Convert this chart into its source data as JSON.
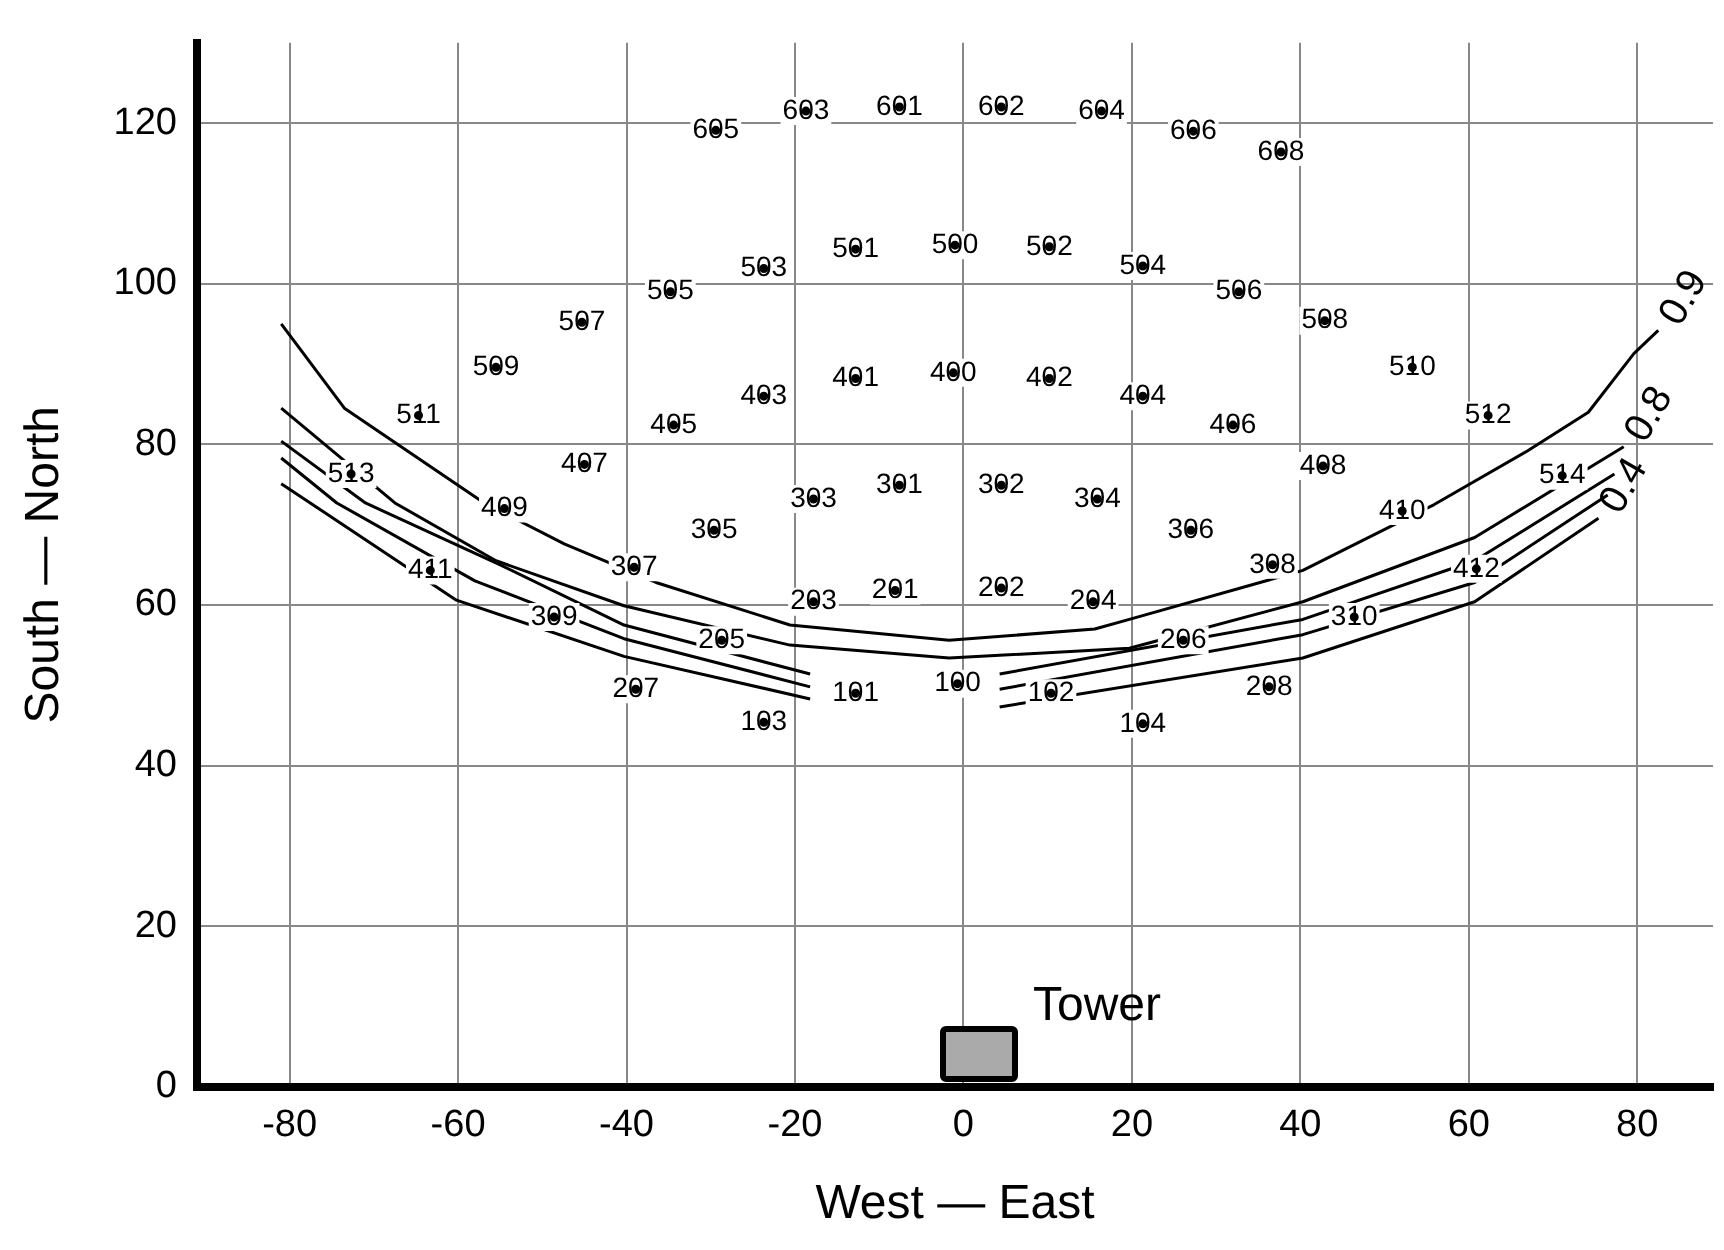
{
  "chart_data": {
    "type": "scatter",
    "xlabel": "West — East",
    "ylabel": "South — North",
    "xlim": [
      -91,
      89
    ],
    "ylim": [
      0,
      130
    ],
    "xticks": [
      -80,
      -60,
      -40,
      -20,
      0,
      20,
      40,
      60,
      80
    ],
    "yticks": [
      0,
      20,
      40,
      60,
      80,
      100,
      120
    ],
    "grid": true,
    "legend": false,
    "marker": "none",
    "line_style": "solid",
    "annotations": [
      "Tower",
      {
        "text": "605",
        "x": -29.4,
        "y": 119.1
      },
      {
        "text": "603",
        "x": -18.7,
        "y": 121.5
      },
      {
        "text": "601",
        "x": -7.6,
        "y": 122
      },
      {
        "text": "602",
        "x": 4.5,
        "y": 122
      },
      {
        "text": "604",
        "x": 16.4,
        "y": 121.5
      },
      {
        "text": "606",
        "x": 27.3,
        "y": 119
      },
      {
        "text": "608",
        "x": 37.7,
        "y": 116.4
      },
      {
        "text": "503",
        "x": -23.7,
        "y": 101.9
      },
      {
        "text": "501",
        "x": -12.8,
        "y": 104.3
      },
      {
        "text": "500",
        "x": -1,
        "y": 104.8
      },
      {
        "text": "502",
        "x": 10.2,
        "y": 104.6
      },
      {
        "text": "504",
        "x": 21.3,
        "y": 102.2
      },
      {
        "text": "506",
        "x": 32.7,
        "y": 99
      },
      {
        "text": "508",
        "x": 42.9,
        "y": 95.4
      },
      {
        "text": "510",
        "x": 53.3,
        "y": 89.6
      },
      {
        "text": "512",
        "x": 62.3,
        "y": 83.6
      },
      {
        "text": "505",
        "x": -34.8,
        "y": 99
      },
      {
        "text": "507",
        "x": -45.3,
        "y": 95.2
      },
      {
        "text": "509",
        "x": -55.5,
        "y": 89.6
      },
      {
        "text": "511",
        "x": -64.7,
        "y": 83.6
      },
      {
        "text": "513",
        "x": -72.7,
        "y": 76.3
      },
      {
        "text": "405",
        "x": -34.4,
        "y": 82.4
      },
      {
        "text": "403",
        "x": -23.7,
        "y": 86
      },
      {
        "text": "401",
        "x": -12.8,
        "y": 88.2
      },
      {
        "text": "400",
        "x": -1.2,
        "y": 88.9
      },
      {
        "text": "402",
        "x": 10.2,
        "y": 88.2
      },
      {
        "text": "404",
        "x": 21.3,
        "y": 86
      },
      {
        "text": "406",
        "x": 32,
        "y": 82.4
      },
      {
        "text": "408",
        "x": 42.7,
        "y": 77.3
      },
      {
        "text": "410",
        "x": 52.1,
        "y": 71.7
      },
      {
        "text": "514",
        "x": 71.1,
        "y": 76.1
      },
      {
        "text": "412",
        "x": 60.9,
        "y": 64.5
      },
      {
        "text": "407",
        "x": -45,
        "y": 77.5
      },
      {
        "text": "409",
        "x": -54.5,
        "y": 72
      },
      {
        "text": "411",
        "x": -63.3,
        "y": 64.3
      },
      {
        "text": "305",
        "x": -29.6,
        "y": 69.3
      },
      {
        "text": "303",
        "x": -17.8,
        "y": 73.2
      },
      {
        "text": "301",
        "x": -7.6,
        "y": 74.9
      },
      {
        "text": "302",
        "x": 4.5,
        "y": 74.9
      },
      {
        "text": "304",
        "x": 15.9,
        "y": 73.2
      },
      {
        "text": "306",
        "x": 27,
        "y": 69.3
      },
      {
        "text": "308",
        "x": 36.7,
        "y": 65
      },
      {
        "text": "307",
        "x": -39.1,
        "y": 64.7
      },
      {
        "text": "203",
        "x": -17.8,
        "y": 60.4
      },
      {
        "text": "201",
        "x": -8.1,
        "y": 61.8
      },
      {
        "text": "202",
        "x": 4.5,
        "y": 62.1
      },
      {
        "text": "204",
        "x": 15.4,
        "y": 60.4
      },
      {
        "text": "309",
        "x": -48.6,
        "y": 58.5
      },
      {
        "text": "310",
        "x": 46.4,
        "y": 58.5
      },
      {
        "text": "205",
        "x": -28.7,
        "y": 55.6
      },
      {
        "text": "206",
        "x": 26.1,
        "y": 55.6
      },
      {
        "text": "207",
        "x": -38.9,
        "y": 49.5
      },
      {
        "text": "208",
        "x": 36.3,
        "y": 49.8
      },
      {
        "text": "101",
        "x": -12.8,
        "y": 49
      },
      {
        "text": "100",
        "x": -0.7,
        "y": 50.2
      },
      {
        "text": "102",
        "x": 10.4,
        "y": 49
      },
      {
        "text": "103",
        "x": -23.7,
        "y": 45.4
      },
      {
        "text": "104",
        "x": 21.3,
        "y": 45.2
      }
    ],
    "series": [
      {
        "type": "scatter",
        "marker": "circle",
        "color": "#000000",
        "x": [
          -29.4,
          -18.7,
          -7.6,
          4.5,
          16.4,
          27.3,
          37.7,
          -23.7,
          -12.8,
          -1,
          10.2,
          21.3,
          32.7,
          42.9,
          53.3,
          62.3,
          -34.8,
          -45.3,
          -55.5,
          -64.7,
          -72.7,
          -34.4,
          -23.7,
          -12.8,
          -1.2,
          10.2,
          21.3,
          32,
          42.7,
          52.1,
          71.1,
          60.9,
          -45,
          -54.5,
          -63.3,
          -29.6,
          -17.8,
          -7.6,
          4.5,
          15.9,
          27,
          36.7,
          -39.1,
          -17.8,
          -8.1,
          4.5,
          15.4,
          -48.6,
          46.4,
          -28.7,
          26.1,
          -38.9,
          36.3,
          -12.8,
          -0.7,
          10.4,
          -23.7,
          21.3
        ],
        "values": [
          119.1,
          121.5,
          122,
          122,
          121.5,
          119,
          116.4,
          101.9,
          104.3,
          104.8,
          104.6,
          102.2,
          99,
          95.4,
          89.6,
          83.6,
          99,
          95.2,
          89.6,
          83.6,
          76.3,
          82.4,
          86,
          88.2,
          88.9,
          88.2,
          86,
          82.4,
          77.3,
          71.7,
          76.1,
          64.5,
          77.5,
          72,
          64.3,
          69.3,
          73.2,
          74.9,
          74.9,
          73.2,
          69.3,
          65,
          64.7,
          60.4,
          61.8,
          62.1,
          60.4,
          58.5,
          58.5,
          55.6,
          55.6,
          49.5,
          49.8,
          49,
          50.2,
          49,
          45.4,
          45.2
        ]
      },
      {
        "type": "line",
        "name": "0.9",
        "color": "#000000",
        "x": [
          -81,
          -73.5,
          -56.9,
          -47.4,
          -36.5,
          -20.6,
          -1.7,
          15.6,
          19.7,
          40.3,
          55.9,
          67,
          74.2,
          79.6,
          82.5
        ],
        "values": [
          95,
          84.5,
          72.7,
          67.6,
          62.8,
          57.5,
          55.6,
          57,
          58.2,
          64.3,
          72.5,
          79.2,
          84,
          91.3,
          94.2
        ]
      },
      {
        "type": "line",
        "name": "0.8",
        "color": "#000000",
        "x": [
          -81,
          -67.5,
          -55.5,
          -40.3,
          -20.6,
          -1.7,
          19.7,
          40.3,
          60.7,
          78.4
        ],
        "values": [
          84.5,
          72.7,
          65.5,
          59.9,
          55,
          53.4,
          54.6,
          60.4,
          68.4,
          79.7
        ]
      },
      {
        "type": "line",
        "color": "#000000",
        "x": [
          -81,
          -71,
          -55,
          -40.3,
          -18.2,
          0,
          4.3,
          40.3,
          60.7,
          77.3
        ],
        "values": [
          80.4,
          72.7,
          65,
          57.5,
          51.4,
          null,
          51.4,
          58.2,
          65.5,
          76.3
        ]
      },
      {
        "type": "line",
        "color": "#000000",
        "x": [
          -81,
          -74.4,
          -58,
          -40.3,
          -18.2,
          0,
          4.3,
          40.3,
          60.7,
          76.5
        ],
        "values": [
          78.3,
          72.7,
          63,
          55.8,
          49.8,
          null,
          49.5,
          56.3,
          62.8,
          73.7
        ]
      },
      {
        "type": "line",
        "name": "0.4",
        "color": "#000000",
        "x": [
          -81,
          -60.2,
          -40.3,
          -18.2,
          0,
          4.3,
          40.3,
          60.7,
          75.4
        ],
        "values": [
          75.1,
          60.6,
          53.6,
          48.3,
          null,
          47.3,
          53.4,
          60.4,
          70.8
        ]
      }
    ]
  }
}
